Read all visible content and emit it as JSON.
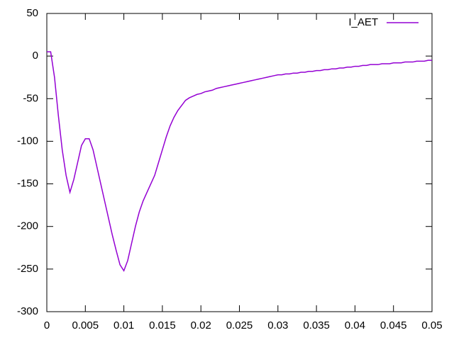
{
  "chart_data": {
    "type": "line",
    "x": [
      0,
      0.0005,
      0.001,
      0.0015,
      0.002,
      0.0025,
      0.003,
      0.0035,
      0.004,
      0.0045,
      0.005,
      0.0055,
      0.006,
      0.0065,
      0.007,
      0.0075,
      0.008,
      0.0085,
      0.009,
      0.0095,
      0.01,
      0.0105,
      0.011,
      0.0115,
      0.012,
      0.0125,
      0.013,
      0.0135,
      0.014,
      0.0145,
      0.015,
      0.0155,
      0.016,
      0.0165,
      0.017,
      0.0175,
      0.018,
      0.0185,
      0.019,
      0.0195,
      0.02,
      0.0205,
      0.021,
      0.0215,
      0.022,
      0.0225,
      0.023,
      0.0235,
      0.024,
      0.0245,
      0.025,
      0.0255,
      0.026,
      0.0265,
      0.027,
      0.0275,
      0.028,
      0.0285,
      0.029,
      0.0295,
      0.03,
      0.0305,
      0.031,
      0.0315,
      0.032,
      0.0325,
      0.033,
      0.0335,
      0.034,
      0.0345,
      0.035,
      0.0355,
      0.036,
      0.0365,
      0.037,
      0.0375,
      0.038,
      0.0385,
      0.039,
      0.0395,
      0.04,
      0.0405,
      0.041,
      0.0415,
      0.042,
      0.0425,
      0.043,
      0.0435,
      0.044,
      0.0445,
      0.045,
      0.0455,
      0.046,
      0.0465,
      0.047,
      0.0475,
      0.048,
      0.0485,
      0.049,
      0.0495,
      0.05
    ],
    "series": [
      {
        "name": "I_AET",
        "color": "#9400d3",
        "values": [
          5,
          5,
          -25,
          -70,
          -110,
          -140,
          -160,
          -145,
          -125,
          -105,
          -97,
          -97,
          -110,
          -130,
          -150,
          -170,
          -190,
          -210,
          -228,
          -245,
          -252,
          -240,
          -220,
          -200,
          -183,
          -170,
          -160,
          -150,
          -140,
          -125,
          -110,
          -95,
          -82,
          -72,
          -64,
          -58,
          -52,
          -49,
          -47,
          -45,
          -44,
          -42,
          -41,
          -40,
          -38,
          -37,
          -36,
          -35,
          -34,
          -33,
          -32,
          -31,
          -30,
          -29,
          -28,
          -27,
          -26,
          -25,
          -24,
          -23,
          -22,
          -22,
          -21,
          -21,
          -20,
          -20,
          -19,
          -19,
          -18,
          -18,
          -17,
          -17,
          -16,
          -16,
          -15,
          -15,
          -14,
          -14,
          -13,
          -13,
          -12,
          -12,
          -11,
          -11,
          -10,
          -10,
          -10,
          -9,
          -9,
          -9,
          -8,
          -8,
          -8,
          -7,
          -7,
          -7,
          -6,
          -6,
          -6,
          -5,
          -5
        ]
      }
    ],
    "xlim": [
      0,
      0.05
    ],
    "ylim": [
      -300,
      50
    ],
    "xticks": [
      0,
      0.005,
      0.01,
      0.015,
      0.02,
      0.025,
      0.03,
      0.035,
      0.04,
      0.045,
      0.05
    ],
    "yticks": [
      -300,
      -250,
      -200,
      -150,
      -100,
      -50,
      0,
      50
    ],
    "legend": "top-right"
  }
}
